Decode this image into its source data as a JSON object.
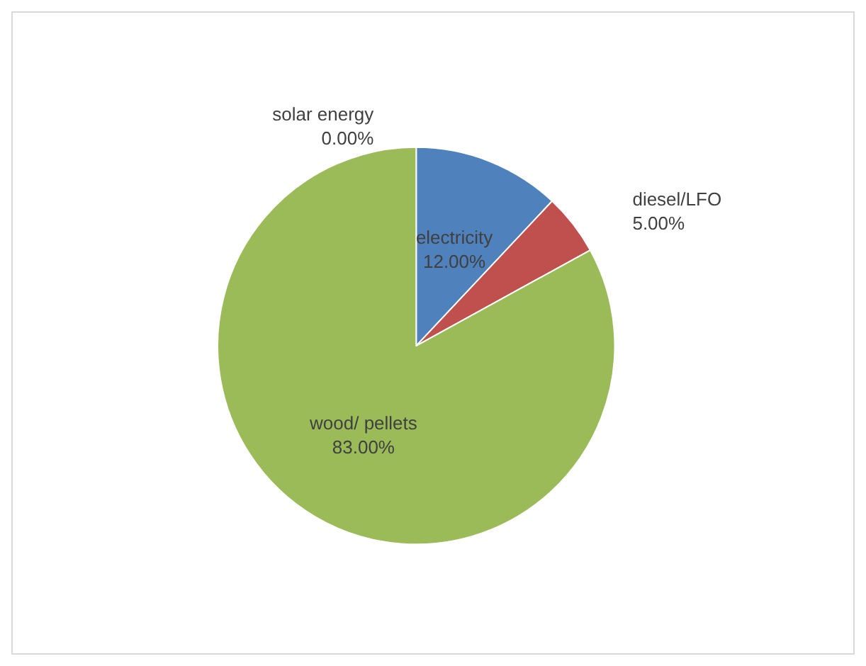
{
  "chart_data": {
    "type": "pie",
    "categories": [
      "solar energy",
      "electricity",
      "diesel/LFO",
      "wood/ pellets"
    ],
    "values": [
      0,
      12,
      5,
      83
    ],
    "value_labels": [
      "0.00%",
      "12.00%",
      "5.00%",
      "83.00%"
    ],
    "colors": [
      "#8064a2",
      "#4f81bd",
      "#c0504d",
      "#9bbb59"
    ],
    "legend": false
  }
}
